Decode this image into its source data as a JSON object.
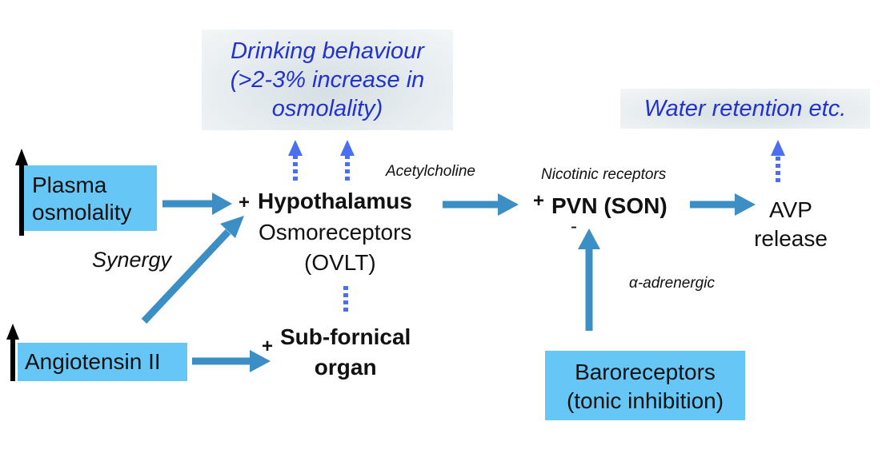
{
  "colors": {
    "arrow": "#3b8fc4",
    "dotted_arrow": "#4a6ff0",
    "input_box": "#66c7f7",
    "outcome_text": "#2233cc",
    "up_indicator": "#000000"
  },
  "outcomes": {
    "drinking": [
      "Drinking behaviour",
      "(>2-3% increase in",
      "osmolality)"
    ],
    "water": "Water retention etc."
  },
  "inputs": {
    "plasma": [
      "Plasma",
      "osmolality"
    ],
    "angiotensin": "Angiotensin II",
    "baroreceptors": [
      "Baroreceptors",
      "(tonic inhibition)"
    ]
  },
  "nodes": {
    "hypothalamus": "Hypothalamus",
    "osmoreceptors": "Osmoreceptors",
    "ovlt": "(OVLT)",
    "subfornical": [
      "Sub-fornical",
      "organ"
    ],
    "pvn": "PVN (SON)",
    "avp": [
      "AVP",
      "release"
    ]
  },
  "labels": {
    "synergy": "Synergy",
    "acetylcholine": "Acetylcholine",
    "nicotinic": "Nicotinic receptors",
    "alpha": "α-adrenergic"
  },
  "signs": {
    "plus": "+",
    "minus": "-"
  }
}
